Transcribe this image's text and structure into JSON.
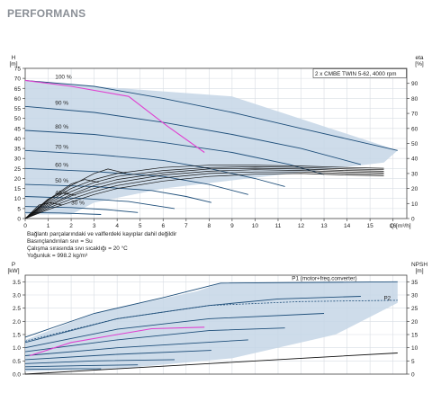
{
  "page": {
    "heading": "PERFORMANS"
  },
  "notes": [
    "Bağlantı parçalarındaki ve valflerdeki kayıplar dahil değildir",
    "Basınçlandırılan sıvı = Su",
    "Çalışma sırasında sıvı sıcaklığı = 20 °C",
    "Yoğunluk = 998.2 kg/m³"
  ],
  "colors": {
    "envelope": "#c6d6e6",
    "curve": "#1f4f7a",
    "eta": "#111111",
    "max_curve": "#e040d0",
    "axis": "#444444",
    "grid": "#d8dde3",
    "heading": "#8a8f96"
  },
  "chart_data": [
    {
      "id": "head",
      "type": "line",
      "legend_box": "2 x CMBE TWIN 5-62, 4000 rpm",
      "y_unit_top": "H",
      "y_unit": "[m]",
      "y2_unit_top": "eta",
      "y2_unit": "[%]",
      "x_unit_label": "Q",
      "x_unit": "[m³/h]",
      "xlim": [
        0,
        16.6
      ],
      "ylim": [
        0,
        75
      ],
      "y2lim": [
        0,
        100
      ],
      "x_ticks": [
        0,
        1,
        2,
        3,
        4,
        5,
        6,
        7,
        8,
        9,
        10,
        11,
        12,
        13,
        14,
        15,
        16
      ],
      "y_ticks": [
        0,
        5,
        10,
        15,
        20,
        25,
        30,
        35,
        40,
        45,
        50,
        55,
        60,
        65,
        70,
        75
      ],
      "y2_ticks": [
        0,
        10,
        20,
        30,
        40,
        50,
        60,
        70,
        80,
        90
      ],
      "grid": true,
      "envelope": [
        [
          0,
          69
        ],
        [
          3,
          66
        ],
        [
          9,
          61
        ],
        [
          16.2,
          34
        ],
        [
          15.6,
          28
        ],
        [
          6,
          15
        ],
        [
          3,
          8
        ],
        [
          2,
          2
        ],
        [
          0,
          2
        ]
      ],
      "speed_curves": [
        {
          "label": "100 %",
          "label_x": 1.3,
          "points": [
            [
              0,
              69
            ],
            [
              3,
              66
            ],
            [
              6,
              60
            ],
            [
              9,
              53
            ],
            [
              12,
              45
            ],
            [
              16.2,
              34
            ]
          ]
        },
        {
          "label": "90 %",
          "label_x": 1.3,
          "points": [
            [
              0,
              56
            ],
            [
              3,
              53
            ],
            [
              6,
              48
            ],
            [
              9,
              42
            ],
            [
              12,
              35
            ],
            [
              14.6,
              27
            ]
          ]
        },
        {
          "label": "80 %",
          "label_x": 1.3,
          "points": [
            [
              0,
              44
            ],
            [
              3,
              42
            ],
            [
              6,
              38
            ],
            [
              9,
              33
            ],
            [
              11.5,
              27
            ],
            [
              13,
              22
            ]
          ]
        },
        {
          "label": "70 %",
          "label_x": 1.3,
          "points": [
            [
              0,
              34
            ],
            [
              3,
              32
            ],
            [
              6,
              29
            ],
            [
              8,
              25
            ],
            [
              10,
              20
            ],
            [
              11.3,
              16
            ]
          ]
        },
        {
          "label": "60 %",
          "label_x": 1.3,
          "points": [
            [
              0,
              25
            ],
            [
              3,
              23.5
            ],
            [
              6,
              21
            ],
            [
              8,
              17
            ],
            [
              9.7,
              12
            ]
          ]
        },
        {
          "label": "50 %",
          "label_x": 1.3,
          "points": [
            [
              0,
              17
            ],
            [
              3,
              16
            ],
            [
              5.5,
              14
            ],
            [
              7,
              11
            ],
            [
              8.1,
              8
            ]
          ]
        },
        {
          "label": "40 %",
          "label_x": 1.3,
          "points": [
            [
              0,
              11
            ],
            [
              2.5,
              10
            ],
            [
              4.5,
              8.5
            ],
            [
              6.5,
              5
            ]
          ]
        },
        {
          "label": "30 %",
          "label_x": 2.0,
          "points": [
            [
              0,
              6
            ],
            [
              2,
              5.5
            ],
            [
              3.5,
              4.5
            ],
            [
              4.9,
              3
            ]
          ]
        },
        {
          "label": "",
          "label_x": 0,
          "points": [
            [
              0,
              3
            ],
            [
              1.5,
              2.8
            ],
            [
              3.3,
              2
            ]
          ]
        }
      ],
      "max_curve": [
        [
          0,
          69
        ],
        [
          2,
          66
        ],
        [
          4.5,
          61
        ],
        [
          6.2,
          46
        ],
        [
          7.8,
          33
        ]
      ],
      "eta_curves": [
        [
          [
            0,
            0
          ],
          [
            1,
            11
          ],
          [
            2,
            20
          ],
          [
            3,
            26
          ],
          [
            4,
            30
          ],
          [
            6,
            34
          ],
          [
            8,
            35.5
          ],
          [
            10,
            35.5
          ],
          [
            12,
            35
          ],
          [
            14,
            34
          ],
          [
            15.6,
            33.5
          ]
        ],
        [
          [
            0,
            0
          ],
          [
            1,
            10
          ],
          [
            2,
            18
          ],
          [
            3,
            24
          ],
          [
            4,
            28
          ],
          [
            6,
            32
          ],
          [
            8,
            34
          ],
          [
            10,
            34.5
          ],
          [
            12,
            34
          ],
          [
            14,
            33
          ],
          [
            15.6,
            32.5
          ]
        ],
        [
          [
            0,
            0
          ],
          [
            1,
            9
          ],
          [
            2,
            16
          ],
          [
            3,
            22
          ],
          [
            4,
            26
          ],
          [
            6,
            30.5
          ],
          [
            8,
            33
          ],
          [
            10,
            33.5
          ],
          [
            12,
            33
          ],
          [
            14,
            32
          ],
          [
            15.6,
            31.5
          ]
        ],
        [
          [
            0,
            0
          ],
          [
            1,
            8
          ],
          [
            2,
            15
          ],
          [
            3,
            20
          ],
          [
            4,
            24
          ],
          [
            6,
            29
          ],
          [
            8,
            31.5
          ],
          [
            10,
            32.5
          ],
          [
            12,
            32
          ],
          [
            14,
            31
          ],
          [
            15.6,
            30.5
          ]
        ],
        [
          [
            0,
            0
          ],
          [
            1,
            7
          ],
          [
            2,
            13
          ],
          [
            3,
            18
          ],
          [
            4,
            22
          ],
          [
            6,
            27
          ],
          [
            8,
            30
          ],
          [
            10,
            31
          ],
          [
            12,
            31
          ],
          [
            14,
            30
          ],
          [
            15.6,
            29.5
          ]
        ],
        [
          [
            0,
            0
          ],
          [
            1,
            6
          ],
          [
            2,
            11
          ],
          [
            3,
            16
          ],
          [
            4,
            20
          ],
          [
            6,
            25
          ],
          [
            8,
            28
          ],
          [
            10,
            29.5
          ],
          [
            12,
            30
          ],
          [
            14,
            29
          ],
          [
            15.6,
            28.5
          ]
        ],
        [
          [
            0,
            0
          ],
          [
            1,
            12
          ],
          [
            2,
            22
          ],
          [
            3,
            30
          ],
          [
            3.6,
            33
          ],
          [
            4.4,
            30
          ]
        ],
        [
          [
            0,
            0
          ],
          [
            1,
            12.5
          ],
          [
            2,
            23
          ],
          [
            2.6,
            26
          ],
          [
            3.2,
            24
          ]
        ],
        [
          [
            0,
            0
          ],
          [
            1,
            13
          ],
          [
            1.6,
            17
          ],
          [
            2.2,
            15.5
          ]
        ],
        [
          [
            0,
            0
          ],
          [
            0.6,
            9
          ],
          [
            1.1,
            10.5
          ],
          [
            1.6,
            9
          ]
        ]
      ]
    },
    {
      "id": "power",
      "type": "line",
      "y_unit_top": "P",
      "y_unit": "[kW]",
      "y2_unit_top": "NPSH",
      "y2_unit": "[m]",
      "xlim": [
        0,
        16.6
      ],
      "ylim": [
        0,
        3.75
      ],
      "y2lim": [
        0,
        37.5
      ],
      "y_ticks": [
        0,
        0.5,
        1.0,
        1.5,
        2.0,
        2.5,
        3.0,
        3.5
      ],
      "y_tick_labels": [
        "0.0",
        "0.5",
        "1.0",
        "1.5",
        "2.0",
        "2.5",
        "3.0",
        "3.5"
      ],
      "y2_ticks": [
        0,
        5,
        10,
        15,
        20,
        25,
        30,
        35
      ],
      "grid": true,
      "envelope": [
        [
          0,
          1.3
        ],
        [
          3,
          2.3
        ],
        [
          7.5,
          3.15
        ],
        [
          8.5,
          3.45
        ],
        [
          16.2,
          3.5
        ],
        [
          16.2,
          2.7
        ],
        [
          13.5,
          1.5
        ],
        [
          9,
          0.6
        ],
        [
          4,
          0.2
        ],
        [
          0,
          0.1
        ]
      ],
      "legend_labels": [
        {
          "text": "P1 (motor+freq.converter)",
          "x": 11.6,
          "y": 3.5
        },
        {
          "text": "P2",
          "x": 15.6,
          "y": 2.75
        }
      ],
      "p1_curves": [
        [
          [
            0,
            1.4
          ],
          [
            3,
            2.3
          ],
          [
            6,
            2.9
          ],
          [
            8.5,
            3.45
          ],
          [
            16.2,
            3.5
          ]
        ],
        [
          [
            0,
            1.2
          ],
          [
            4,
            2.1
          ],
          [
            8,
            2.6
          ],
          [
            11,
            2.85
          ],
          [
            14.6,
            2.95
          ]
        ],
        [
          [
            0,
            1.0
          ],
          [
            4,
            1.7
          ],
          [
            8,
            2.1
          ],
          [
            13,
            2.3
          ]
        ],
        [
          [
            0,
            0.85
          ],
          [
            4,
            1.3
          ],
          [
            8,
            1.65
          ],
          [
            11.3,
            1.75
          ]
        ],
        [
          [
            0,
            0.7
          ],
          [
            4,
            1.0
          ],
          [
            9.7,
            1.3
          ]
        ],
        [
          [
            0,
            0.55
          ],
          [
            4,
            0.75
          ],
          [
            8.1,
            0.9
          ]
        ],
        [
          [
            0,
            0.4
          ],
          [
            3,
            0.5
          ],
          [
            6.5,
            0.55
          ]
        ],
        [
          [
            0,
            0.28
          ],
          [
            2.5,
            0.32
          ],
          [
            4.9,
            0.35
          ]
        ],
        [
          [
            0,
            0.18
          ],
          [
            2,
            0.2
          ],
          [
            3.3,
            0.2
          ]
        ]
      ],
      "p2_curve": [
        [
          0,
          1.25
        ],
        [
          4,
          2.1
        ],
        [
          8,
          2.6
        ],
        [
          12,
          2.75
        ],
        [
          16.2,
          2.8
        ]
      ],
      "npsh_curve": [
        [
          0,
          0
        ],
        [
          4,
          0.2
        ],
        [
          8,
          0.4
        ],
        [
          12,
          0.6
        ],
        [
          16.2,
          0.8
        ]
      ],
      "max_curve": [
        [
          0.2,
          0.7
        ],
        [
          2,
          1.2
        ],
        [
          4,
          1.5
        ],
        [
          5.5,
          1.72
        ],
        [
          7.8,
          1.78
        ]
      ]
    }
  ]
}
